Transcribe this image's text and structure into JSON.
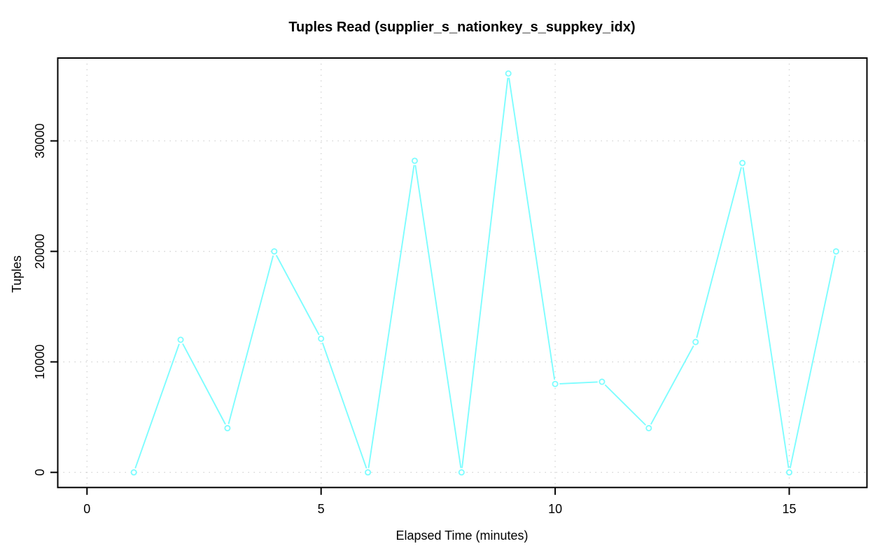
{
  "chart_data": {
    "type": "line",
    "title": "Tuples Read (supplier_s_nationkey_s_suppkey_idx)",
    "xlabel": "Elapsed Time (minutes)",
    "ylabel": "Tuples",
    "x": [
      1,
      2,
      3,
      4,
      5,
      6,
      7,
      8,
      9,
      10,
      11,
      12,
      13,
      14,
      15,
      16
    ],
    "y": [
      0,
      12000,
      4000,
      20000,
      12100,
      0,
      28200,
      0,
      36100,
      8000,
      8200,
      4000,
      11800,
      28000,
      0,
      20000
    ],
    "x_ticks": [
      0,
      5,
      10,
      15
    ],
    "y_ticks": [
      0,
      10000,
      20000,
      30000
    ],
    "xlim": [
      -0.625,
      16.66
    ],
    "ylim": [
      -1370,
      37500
    ],
    "grid": "dotted",
    "legend": "none",
    "marker": "open-circle",
    "colors": {
      "line": "#7dfdff",
      "marker": "#7dfdff",
      "marker_fill": "#ffffff",
      "grid": "#cfcfcf",
      "axis": "#000000",
      "background": "#ffffff"
    }
  }
}
